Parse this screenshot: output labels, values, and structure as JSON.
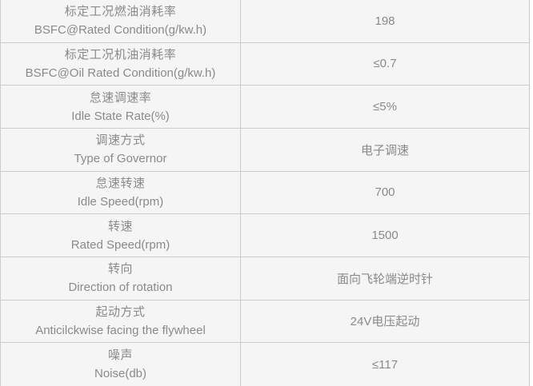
{
  "table": {
    "colors": {
      "background": "#f5f5f6",
      "border": "#cccccc",
      "text": "#8a8a8a"
    },
    "rows": [
      {
        "zh": "标定工况燃油消耗率",
        "en": "BSFC@Rated Condition(g/kw.h)",
        "value": "198"
      },
      {
        "zh": "标定工况机油消耗率",
        "en": "BSFC@Oil Rated Condition(g/kw.h)",
        "value": "≤0.7"
      },
      {
        "zh": "怠速调速率",
        "en": "Idle State Rate(%)",
        "value": "≤5%"
      },
      {
        "zh": "调速方式",
        "en": "Type of Governor",
        "value": "电子调速"
      },
      {
        "zh": "怠速转速",
        "en": "Idle Speed(rpm)",
        "value": "700"
      },
      {
        "zh": "转速",
        "en": "Rated Speed(rpm)",
        "value": "1500"
      },
      {
        "zh": "转向",
        "en": "Direction of rotation",
        "value": "面向飞轮端逆时针"
      },
      {
        "zh": "起动方式",
        "en": "Anticilckwise facing the flywheel",
        "value": "24V电压起动"
      },
      {
        "zh": "噪声",
        "en": "Noise(db)",
        "value": "≤117"
      }
    ]
  }
}
